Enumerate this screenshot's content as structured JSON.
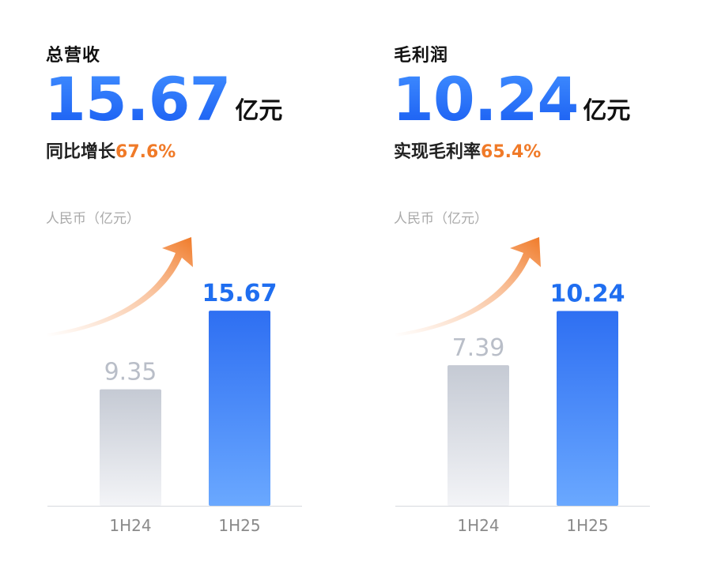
{
  "colors": {
    "accent_blue": "#1f6ef0",
    "bar_blue_top": "#2e6ff2",
    "bar_blue_bottom": "#6aa8ff",
    "bar_gray_top": "#c5cad4",
    "bar_gray_bottom": "#f3f4f7",
    "highlight_orange": "#f07a28",
    "label_gray": "#b9bec8"
  },
  "panels": [
    {
      "title": "总营收",
      "big_number": "15.67",
      "big_unit": "亿元",
      "sub_text": "同比增长",
      "sub_highlight": "67.6%",
      "unit_label": "人民币（亿元）"
    },
    {
      "title": "毛利润",
      "big_number": "10.24",
      "big_unit": "亿元",
      "sub_text": "实现毛利率",
      "sub_highlight": "65.4%",
      "unit_label": "人民币（亿元）"
    }
  ],
  "chart_data": [
    {
      "type": "bar",
      "categories": [
        "1H24",
        "1H25"
      ],
      "values": [
        9.35,
        15.67
      ],
      "value_labels": [
        "9.35",
        "15.67"
      ],
      "title": "总营收",
      "xlabel": "",
      "ylabel": "人民币（亿元）",
      "ylim": [
        0,
        16.5
      ],
      "grid": false,
      "legend": "none"
    },
    {
      "type": "bar",
      "categories": [
        "1H24",
        "1H25"
      ],
      "values": [
        7.39,
        10.24
      ],
      "value_labels": [
        "7.39",
        "10.24"
      ],
      "title": "毛利润",
      "xlabel": "",
      "ylabel": "人民币（亿元）",
      "ylim": [
        0,
        10.8
      ],
      "grid": false,
      "legend": "none"
    }
  ]
}
